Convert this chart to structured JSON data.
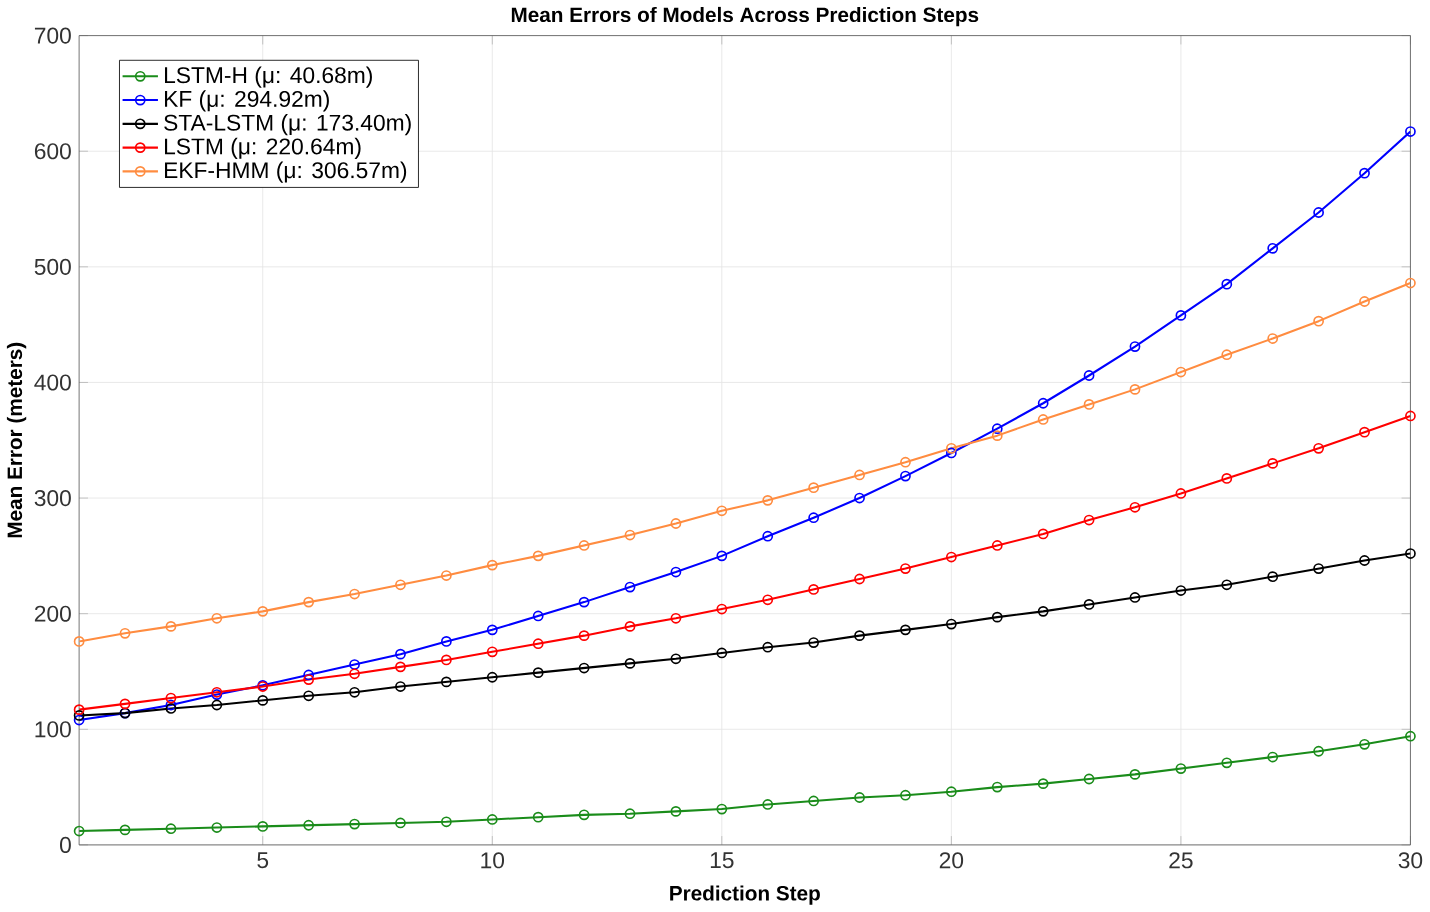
{
  "chart_data": {
    "type": "line",
    "title": "Mean Errors of Models Across Prediction Steps",
    "xlabel": "Prediction Step",
    "ylabel": "Mean Error (meters)",
    "x": [
      1,
      2,
      3,
      4,
      5,
      6,
      7,
      8,
      9,
      10,
      11,
      12,
      13,
      14,
      15,
      16,
      17,
      18,
      19,
      20,
      21,
      22,
      23,
      24,
      25,
      26,
      27,
      28,
      29,
      30
    ],
    "series": [
      {
        "name": "LSTM-H (μ: 40.68m)",
        "color": "#1a8c1a",
        "values": [
          12,
          13,
          14,
          15,
          16,
          17,
          18,
          19,
          20,
          22,
          24,
          26,
          27,
          29,
          31,
          35,
          38,
          41,
          43,
          46,
          50,
          53,
          57,
          61,
          66,
          71,
          76,
          81,
          87,
          94
        ]
      },
      {
        "name": "KF (μ: 294.92m)",
        "color": "#0000ff",
        "values": [
          108,
          114,
          121,
          130,
          138,
          147,
          156,
          165,
          176,
          186,
          198,
          210,
          223,
          236,
          250,
          267,
          283,
          300,
          319,
          339,
          360,
          382,
          406,
          431,
          458,
          485,
          516,
          547,
          581,
          617
        ]
      },
      {
        "name": "STA-LSTM (μ: 173.40m)",
        "color": "#000000",
        "values": [
          112,
          114,
          118,
          121,
          125,
          129,
          132,
          137,
          141,
          145,
          149,
          153,
          157,
          161,
          166,
          171,
          175,
          181,
          186,
          191,
          197,
          202,
          208,
          214,
          220,
          225,
          232,
          239,
          246,
          252
        ]
      },
      {
        "name": "LSTM (μ: 220.64m)",
        "color": "#ff0000",
        "values": [
          117,
          122,
          127,
          132,
          137,
          143,
          148,
          154,
          160,
          167,
          174,
          181,
          189,
          196,
          204,
          212,
          221,
          230,
          239,
          249,
          259,
          269,
          281,
          292,
          304,
          317,
          330,
          343,
          357,
          371
        ]
      },
      {
        "name": "EKF-HMM (μ: 306.57m)",
        "color": "#ff8c40",
        "values": [
          176,
          183,
          189,
          196,
          202,
          210,
          217,
          225,
          233,
          242,
          250,
          259,
          268,
          278,
          289,
          298,
          309,
          320,
          331,
          343,
          354,
          368,
          381,
          394,
          409,
          424,
          438,
          453,
          470,
          486
        ]
      }
    ],
    "xlim": [
      1,
      30
    ],
    "xticks": [
      5,
      10,
      15,
      20,
      25,
      30
    ],
    "ylim": [
      0,
      700
    ],
    "yticks": [
      0,
      100,
      200,
      300,
      400,
      500,
      600,
      700
    ],
    "grid": true,
    "legend": "top left",
    "marker": "circle",
    "line_style": "solid"
  }
}
